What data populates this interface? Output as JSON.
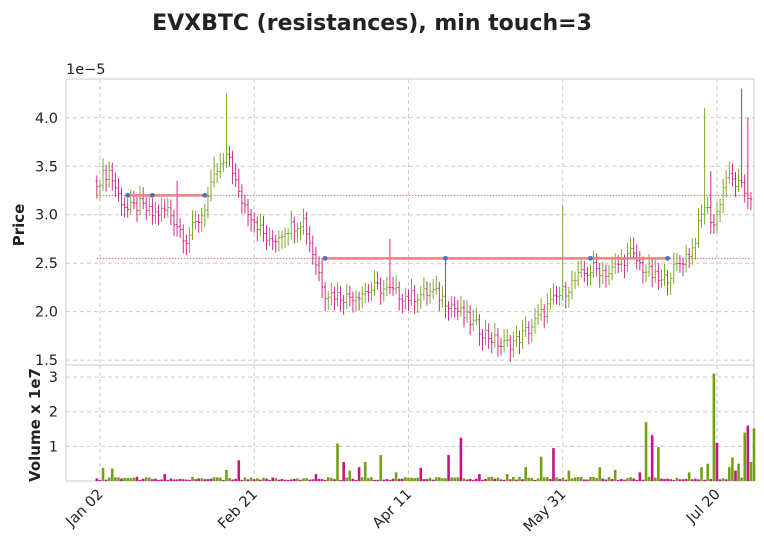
{
  "chart_data": {
    "type": "candlestick",
    "title": "EVXBTC (resistances), min touch=3",
    "price_panel": {
      "ylabel": "Price",
      "offset_text": "1e−5",
      "yticks": [
        "1.5",
        "2.0",
        "2.5",
        "3.0",
        "3.5",
        "4.0"
      ],
      "ylim": [
        1.45,
        4.4
      ],
      "unit_scale": 1e-05,
      "grid": true
    },
    "volume_panel": {
      "ylabel": "Volume x 1e7",
      "yticks": [
        "1",
        "2",
        "3"
      ],
      "ylim": [
        0,
        3.35
      ],
      "grid": true
    },
    "x_tick_labels": [
      "Jan 02",
      "Feb 21",
      "Apr 11",
      "May 31",
      "Jul 20"
    ],
    "x_tick_days": [
      0,
      50,
      100,
      150,
      200
    ],
    "x_range_days": [
      -11,
      212
    ],
    "colors": {
      "up": "#73a112",
      "down": "#c6157f",
      "resistance": "#f08080",
      "touch_marker": "#4c72b0",
      "threshold": "#cd5c5c"
    },
    "resistances": [
      {
        "level": 3.2,
        "start_day": 9,
        "end_day": 35,
        "touch_days": [
          9,
          17,
          34
        ]
      },
      {
        "level": 2.55,
        "start_day": 73,
        "end_day": 184,
        "touch_days": [
          73,
          112,
          159,
          184
        ]
      }
    ],
    "threshold_lines": [
      3.2,
      2.55
    ],
    "anchors": [
      [
        -1,
        3.35
      ],
      [
        3,
        3.45
      ],
      [
        6,
        3.2
      ],
      [
        9,
        3.05
      ],
      [
        13,
        3.1
      ],
      [
        17,
        3.0
      ],
      [
        22,
        3.05
      ],
      [
        28,
        2.75
      ],
      [
        33,
        3.0
      ],
      [
        38,
        3.45
      ],
      [
        42,
        3.6
      ],
      [
        45,
        3.2
      ],
      [
        48,
        3.05
      ],
      [
        55,
        2.7
      ],
      [
        60,
        2.85
      ],
      [
        66,
        2.95
      ],
      [
        70,
        2.5
      ],
      [
        73,
        2.2
      ],
      [
        80,
        2.15
      ],
      [
        90,
        2.25
      ],
      [
        100,
        2.15
      ],
      [
        108,
        2.2
      ],
      [
        113,
        2.1
      ],
      [
        118,
        1.95
      ],
      [
        124,
        1.8
      ],
      [
        130,
        1.65
      ],
      [
        135,
        1.7
      ],
      [
        140,
        1.85
      ],
      [
        145,
        2.05
      ],
      [
        150,
        2.2
      ],
      [
        155,
        2.35
      ],
      [
        160,
        2.45
      ],
      [
        165,
        2.4
      ],
      [
        172,
        2.6
      ],
      [
        176,
        2.45
      ],
      [
        182,
        2.3
      ],
      [
        188,
        2.5
      ],
      [
        192,
        2.65
      ],
      [
        196,
        3.1
      ],
      [
        199,
        2.9
      ],
      [
        203,
        3.4
      ],
      [
        207,
        3.3
      ],
      [
        210,
        3.2
      ]
    ],
    "spikes": {
      "41": 4.25,
      "72": 2.55,
      "94": 2.75,
      "112": 2.55,
      "150": 3.1,
      "196": 4.1,
      "198": 3.45,
      "208": 4.3,
      "210": 4.0,
      "25": 3.35,
      "37": 3.6
    },
    "volume_points": [
      [
        1,
        0.38,
        "up"
      ],
      [
        4,
        0.36,
        "up"
      ],
      [
        12,
        0.12,
        "down"
      ],
      [
        21,
        0.2,
        "down"
      ],
      [
        30,
        0.12,
        "up"
      ],
      [
        41,
        0.32,
        "up"
      ],
      [
        45,
        0.6,
        "down"
      ],
      [
        56,
        0.1,
        "down"
      ],
      [
        70,
        0.2,
        "down"
      ],
      [
        77,
        1.08,
        "up"
      ],
      [
        79,
        0.55,
        "down"
      ],
      [
        81,
        0.3,
        "up"
      ],
      [
        84,
        0.4,
        "down"
      ],
      [
        86,
        0.55,
        "up"
      ],
      [
        91,
        0.75,
        "up"
      ],
      [
        96,
        0.25,
        "up"
      ],
      [
        104,
        0.38,
        "down"
      ],
      [
        113,
        0.75,
        "down"
      ],
      [
        117,
        1.25,
        "down"
      ],
      [
        123,
        0.2,
        "down"
      ],
      [
        132,
        0.2,
        "up"
      ],
      [
        138,
        0.4,
        "up"
      ],
      [
        143,
        0.7,
        "up"
      ],
      [
        147,
        0.95,
        "down"
      ],
      [
        152,
        0.3,
        "up"
      ],
      [
        162,
        0.4,
        "up"
      ],
      [
        167,
        0.32,
        "up"
      ],
      [
        175,
        0.25,
        "down"
      ],
      [
        177,
        1.7,
        "up"
      ],
      [
        179,
        1.32,
        "down"
      ],
      [
        181,
        0.98,
        "up"
      ],
      [
        191,
        0.25,
        "up"
      ],
      [
        195,
        0.4,
        "up"
      ],
      [
        197,
        0.5,
        "up"
      ],
      [
        199,
        3.1,
        "up"
      ],
      [
        200,
        1.1,
        "down"
      ],
      [
        204,
        0.4,
        "up"
      ],
      [
        205,
        0.68,
        "up"
      ],
      [
        206,
        0.3,
        "down"
      ],
      [
        207,
        0.5,
        "up"
      ],
      [
        209,
        1.4,
        "up"
      ],
      [
        210,
        1.6,
        "down"
      ],
      [
        211,
        0.55,
        "up"
      ],
      [
        212,
        1.52,
        "up"
      ]
    ]
  }
}
